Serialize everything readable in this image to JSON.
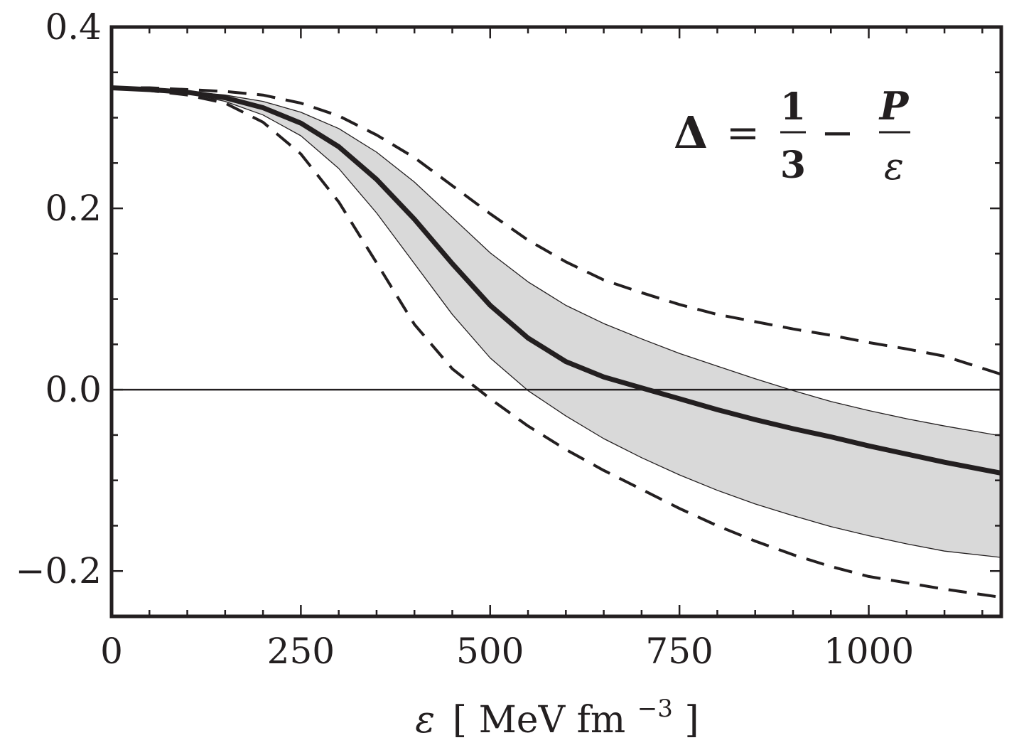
{
  "chart_data": {
    "type": "line",
    "title": "",
    "xlabel": "ε [MeV fm⁻³]",
    "xlabel_parts": {
      "symbol": "ε",
      "open": "[",
      "unit": "MeV fm",
      "exponent": "−3",
      "close": "]"
    },
    "ylabel": "",
    "xlim": [
      0,
      1175
    ],
    "ylim": [
      -0.25,
      0.4
    ],
    "x_ticks": [
      0,
      250,
      500,
      750,
      1000
    ],
    "x_tick_labels": [
      "0",
      "250",
      "500",
      "750",
      "1000"
    ],
    "y_ticks": [
      -0.2,
      0.0,
      0.2,
      0.4
    ],
    "y_tick_labels": [
      "−0.2",
      "0.0",
      "0.2",
      "0.4"
    ],
    "x_minor_step": 50,
    "y_minor_step": 0.05,
    "grid": false,
    "annotation": {
      "lhs": "Δ",
      "eq": "=",
      "num1": "1",
      "den1": "3",
      "minus": "−",
      "num2": "P",
      "den2": "ε",
      "position": "top-right"
    },
    "x": [
      0,
      50,
      100,
      150,
      200,
      250,
      300,
      350,
      400,
      450,
      500,
      550,
      600,
      650,
      700,
      750,
      800,
      850,
      900,
      950,
      1000,
      1050,
      1100,
      1175
    ],
    "series": [
      {
        "name": "band-upper",
        "style": "thin",
        "values": [
          0.333,
          0.332,
          0.329,
          0.325,
          0.318,
          0.306,
          0.288,
          0.262,
          0.229,
          0.19,
          0.151,
          0.119,
          0.093,
          0.073,
          0.056,
          0.04,
          0.026,
          0.012,
          -0.001,
          -0.013,
          -0.023,
          -0.032,
          -0.04,
          -0.051
        ]
      },
      {
        "name": "band-lower",
        "style": "thin",
        "values": [
          0.333,
          0.331,
          0.327,
          0.318,
          0.303,
          0.28,
          0.244,
          0.195,
          0.139,
          0.083,
          0.035,
          -0.001,
          -0.029,
          -0.054,
          -0.075,
          -0.094,
          -0.111,
          -0.126,
          -0.139,
          -0.151,
          -0.161,
          -0.17,
          -0.178,
          -0.185
        ]
      },
      {
        "name": "central",
        "style": "solid",
        "values": [
          0.333,
          0.331,
          0.328,
          0.322,
          0.311,
          0.294,
          0.268,
          0.232,
          0.188,
          0.139,
          0.093,
          0.057,
          0.031,
          0.014,
          0.002,
          -0.01,
          -0.022,
          -0.033,
          -0.043,
          -0.052,
          -0.062,
          -0.071,
          -0.08,
          -0.092
        ]
      },
      {
        "name": "dashed-upper",
        "style": "dashed",
        "values": [
          0.333,
          0.333,
          0.331,
          0.329,
          0.325,
          0.316,
          0.302,
          0.281,
          0.256,
          0.225,
          0.194,
          0.165,
          0.141,
          0.121,
          0.107,
          0.094,
          0.083,
          0.075,
          0.067,
          0.06,
          0.052,
          0.045,
          0.037,
          0.017
        ]
      },
      {
        "name": "dashed-lower",
        "style": "dashed",
        "values": [
          0.333,
          0.33,
          0.325,
          0.316,
          0.295,
          0.26,
          0.207,
          0.14,
          0.072,
          0.023,
          -0.01,
          -0.04,
          -0.066,
          -0.089,
          -0.11,
          -0.131,
          -0.15,
          -0.167,
          -0.182,
          -0.195,
          -0.206,
          -0.213,
          -0.22,
          -0.229
        ]
      }
    ],
    "zero_line": 0.0,
    "band_color": "#d9d9d9",
    "line_color": "#231f20"
  }
}
